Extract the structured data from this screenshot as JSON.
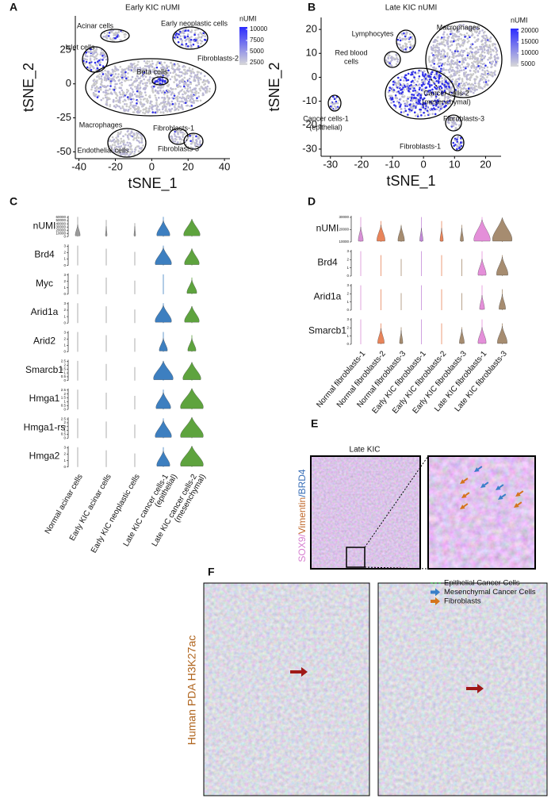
{
  "panel_a": {
    "letter": "A",
    "title": "Early KIC nUMI",
    "x_label": "tSNE_1",
    "y_label": "tSNE_2",
    "xlim": [
      -42,
      43
    ],
    "ylim": [
      -55,
      50
    ],
    "xticks": [
      -40,
      -20,
      0,
      20,
      40
    ],
    "yticks": [
      -50,
      -25,
      0,
      25
    ],
    "legend_title": "nUMI",
    "legend_ticks": [
      2500,
      5000,
      7500,
      10000
    ],
    "clusters": [
      [
        "Acinar cells"
      ],
      [
        "Islet cells"
      ],
      [
        "Early neoplastic cells"
      ],
      [
        "Fibroblasts-2"
      ],
      [
        "Beta cells"
      ],
      [
        "Macrophages"
      ],
      [
        "Fibroblasts-1"
      ],
      [
        "Endothelial cells"
      ],
      [
        "Fibroblasts-3"
      ]
    ]
  },
  "panel_b": {
    "letter": "B",
    "title": "Late KIC nUMI",
    "x_label": "tSNE_1",
    "y_label": "tSNE_2",
    "xlim": [
      -33,
      25
    ],
    "ylim": [
      -33,
      25
    ],
    "xticks": [
      -30,
      -20,
      -10,
      0,
      10,
      20
    ],
    "yticks": [
      -30,
      -20,
      -10,
      0,
      10,
      20
    ],
    "legend_title": "nUMI",
    "legend_ticks": [
      5000,
      10000,
      15000,
      20000
    ],
    "clusters": [
      [
        "Lymphocytes"
      ],
      [
        "Red blood",
        "cells"
      ],
      [
        "Macrophages"
      ],
      [
        "Cancer cells-2",
        "(mesenchymal)"
      ],
      [
        "Cancer cells-1",
        "(epithelial)"
      ],
      [
        "Fibroblasts-3"
      ],
      [
        "Fibroblasts-1"
      ]
    ]
  },
  "panel_c": {
    "letter": "C",
    "genes": [
      "nUMI",
      "Brd4",
      "Myc",
      "Arid1a",
      "Arid2",
      "Smarcb1",
      "Hmga1",
      "Hmga1-rs",
      "Hmga2"
    ],
    "yticks": [
      [
        0,
        10000,
        20000,
        30000,
        40000,
        50000,
        60000
      ],
      [
        0,
        1,
        2,
        3
      ],
      [
        0,
        1,
        2,
        3
      ],
      [
        0,
        1,
        2,
        3
      ],
      [
        0,
        1,
        2,
        3
      ],
      [
        0,
        0.5,
        1,
        1.5,
        2,
        2.5
      ],
      [
        0,
        0.5,
        1,
        1.5,
        2,
        2.5
      ],
      [
        0,
        0.5,
        1,
        1.5,
        2,
        2.5
      ],
      [
        0,
        1,
        2,
        3
      ]
    ],
    "categories": [
      [
        "Normal acinar cells"
      ],
      [
        "Early KIC acinar cells"
      ],
      [
        "Early KIC neoplastic cells"
      ],
      [
        "Late KIC cancer cells-1",
        "(epithelial)"
      ],
      [
        "Late KIC cancer cells-2",
        "(mesenchymal)"
      ]
    ],
    "colors": [
      "#9a9a9a",
      "#9a9a9a",
      "#9a9a9a",
      "#3d7fc0",
      "#5ea33e"
    ]
  },
  "panel_d": {
    "letter": "D",
    "genes": [
      "nUMI",
      "Brd4",
      "Arid1a",
      "Smarcb1"
    ],
    "yticks": [
      [
        10000,
        20000,
        30000
      ],
      [
        0,
        1,
        2,
        3
      ],
      [
        0,
        1,
        2,
        3
      ],
      [
        0,
        1,
        2,
        3
      ]
    ],
    "categories": [
      "Normal fibroblasts-1",
      "Normal fibroblasts-2",
      "Normal fibroblasts-3",
      "Early KIC fibroblasts-1",
      "Early KIC fibroblasts-2",
      "Early KIC fibroblasts-3",
      "Late KIC fibroblasts-1",
      "Late KIC fibroblasts-3"
    ],
    "colors": [
      "#d890d6",
      "#e8845a",
      "#a68c70",
      "#c48ad9",
      "#e8845a",
      "#a68c70",
      "#e48fd9",
      "#a68c70"
    ]
  },
  "panel_e": {
    "letter": "E",
    "title": "Late KIC",
    "stain": [
      {
        "text": "SOX9",
        "color": "#d67fd0"
      },
      {
        "text": "/",
        "color": "#d67fd0"
      },
      {
        "text": "Vimentin",
        "color": "#c0692c"
      },
      {
        "text": "/",
        "color": "#3a6fb7"
      },
      {
        "text": "BRD4",
        "color": "#3a6fb7"
      }
    ],
    "legend": [
      {
        "text": "Epithelial Cancer Cells",
        "color": "#3aa34a"
      },
      {
        "text": "Mesenchymal Cancer Cells",
        "color": "#3a7fc8"
      },
      {
        "text": "Fibroblasts",
        "color": "#d4741c"
      }
    ]
  },
  "panel_f": {
    "letter": "F",
    "y_label": "Human PDA H3K27ac"
  }
}
